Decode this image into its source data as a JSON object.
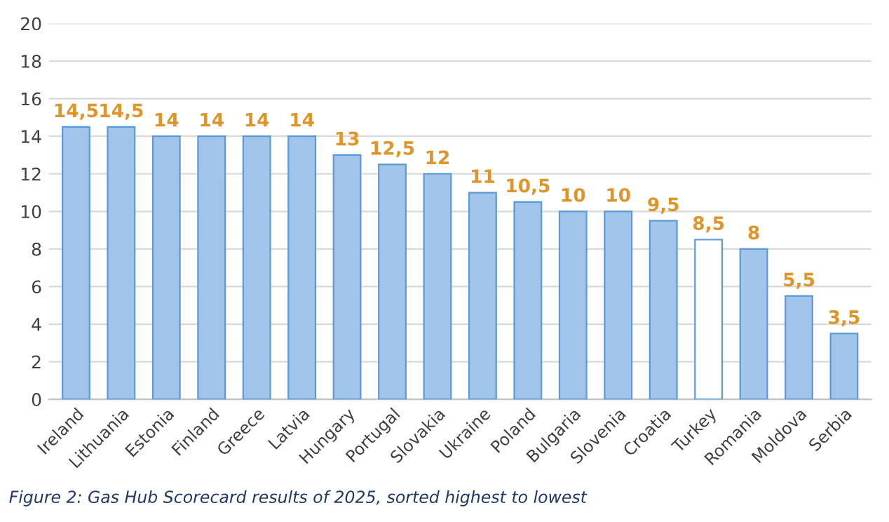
{
  "chart_data": {
    "type": "bar",
    "categories": [
      "Ireland",
      "Lithuania",
      "Estonia",
      "Finland",
      "Greece",
      "Latvia",
      "Hungary",
      "Portugal",
      "Slovakia",
      "Ukraine",
      "Poland",
      "Bulgaria",
      "Slovenia",
      "Croatia",
      "Turkey",
      "Romania",
      "Moldova",
      "Serbia"
    ],
    "values": [
      14.5,
      14.5,
      14,
      14,
      14,
      14,
      13,
      12.5,
      12,
      11,
      10.5,
      10,
      10,
      9.5,
      8.5,
      8,
      5.5,
      3.5
    ],
    "value_labels": [
      "14,5",
      "14,5",
      "14",
      "14",
      "14",
      "14",
      "13",
      "12,5",
      "12",
      "11",
      "10,5",
      "10",
      "10",
      "9,5",
      "8,5",
      "8",
      "5,5",
      "3,5"
    ],
    "color": "#5b9bd5",
    "colors": [
      "#a3c4ea",
      "#a3c4ea",
      "#a3c4ea",
      "#a3c4ea",
      "#a3c4ea",
      "#a3c4ea",
      "#a3c4ea",
      "#a3c4ea",
      "#a3c4ea",
      "#a3c4ea",
      "#a3c4ea",
      "#a3c4ea",
      "#a3c4ea",
      "#a3c4ea",
      "#ffffff",
      "#a3c4ea",
      "#a3c4ea",
      "#a3c4ea"
    ],
    "ylim": [
      0,
      20
    ],
    "yticks": [
      0,
      2,
      4,
      6,
      8,
      10,
      12,
      14,
      16,
      18,
      20
    ],
    "grid": "y",
    "annotations": [
      "Figure 2: Gas Hub Scorecard results of 2025, sorted highest to lowest"
    ]
  }
}
